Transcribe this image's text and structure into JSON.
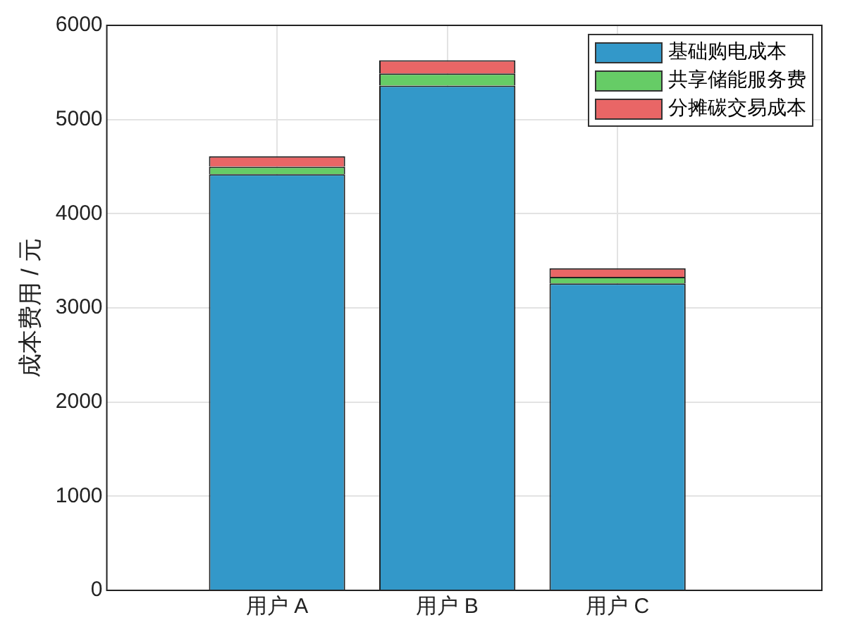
{
  "chart_data": {
    "type": "bar",
    "stacked": true,
    "ylabel": "成本费用 / 元",
    "categories": [
      "用户 A",
      "用户 B",
      "用户 C"
    ],
    "series": [
      {
        "name": "基础购电成本",
        "color": "#3398c9",
        "values": [
          4420,
          5360,
          3260
        ]
      },
      {
        "name": "共享储能服务费",
        "color": "#66cc66",
        "values": [
          80,
          130,
          70
        ]
      },
      {
        "name": "分摊碳交易成本",
        "color": "#e96666",
        "values": [
          110,
          140,
          90
        ]
      }
    ],
    "ylim": [
      0,
      6000
    ],
    "yticks": [
      0,
      1000,
      2000,
      3000,
      4000,
      5000,
      6000
    ],
    "grid": true,
    "legend": "top right"
  }
}
